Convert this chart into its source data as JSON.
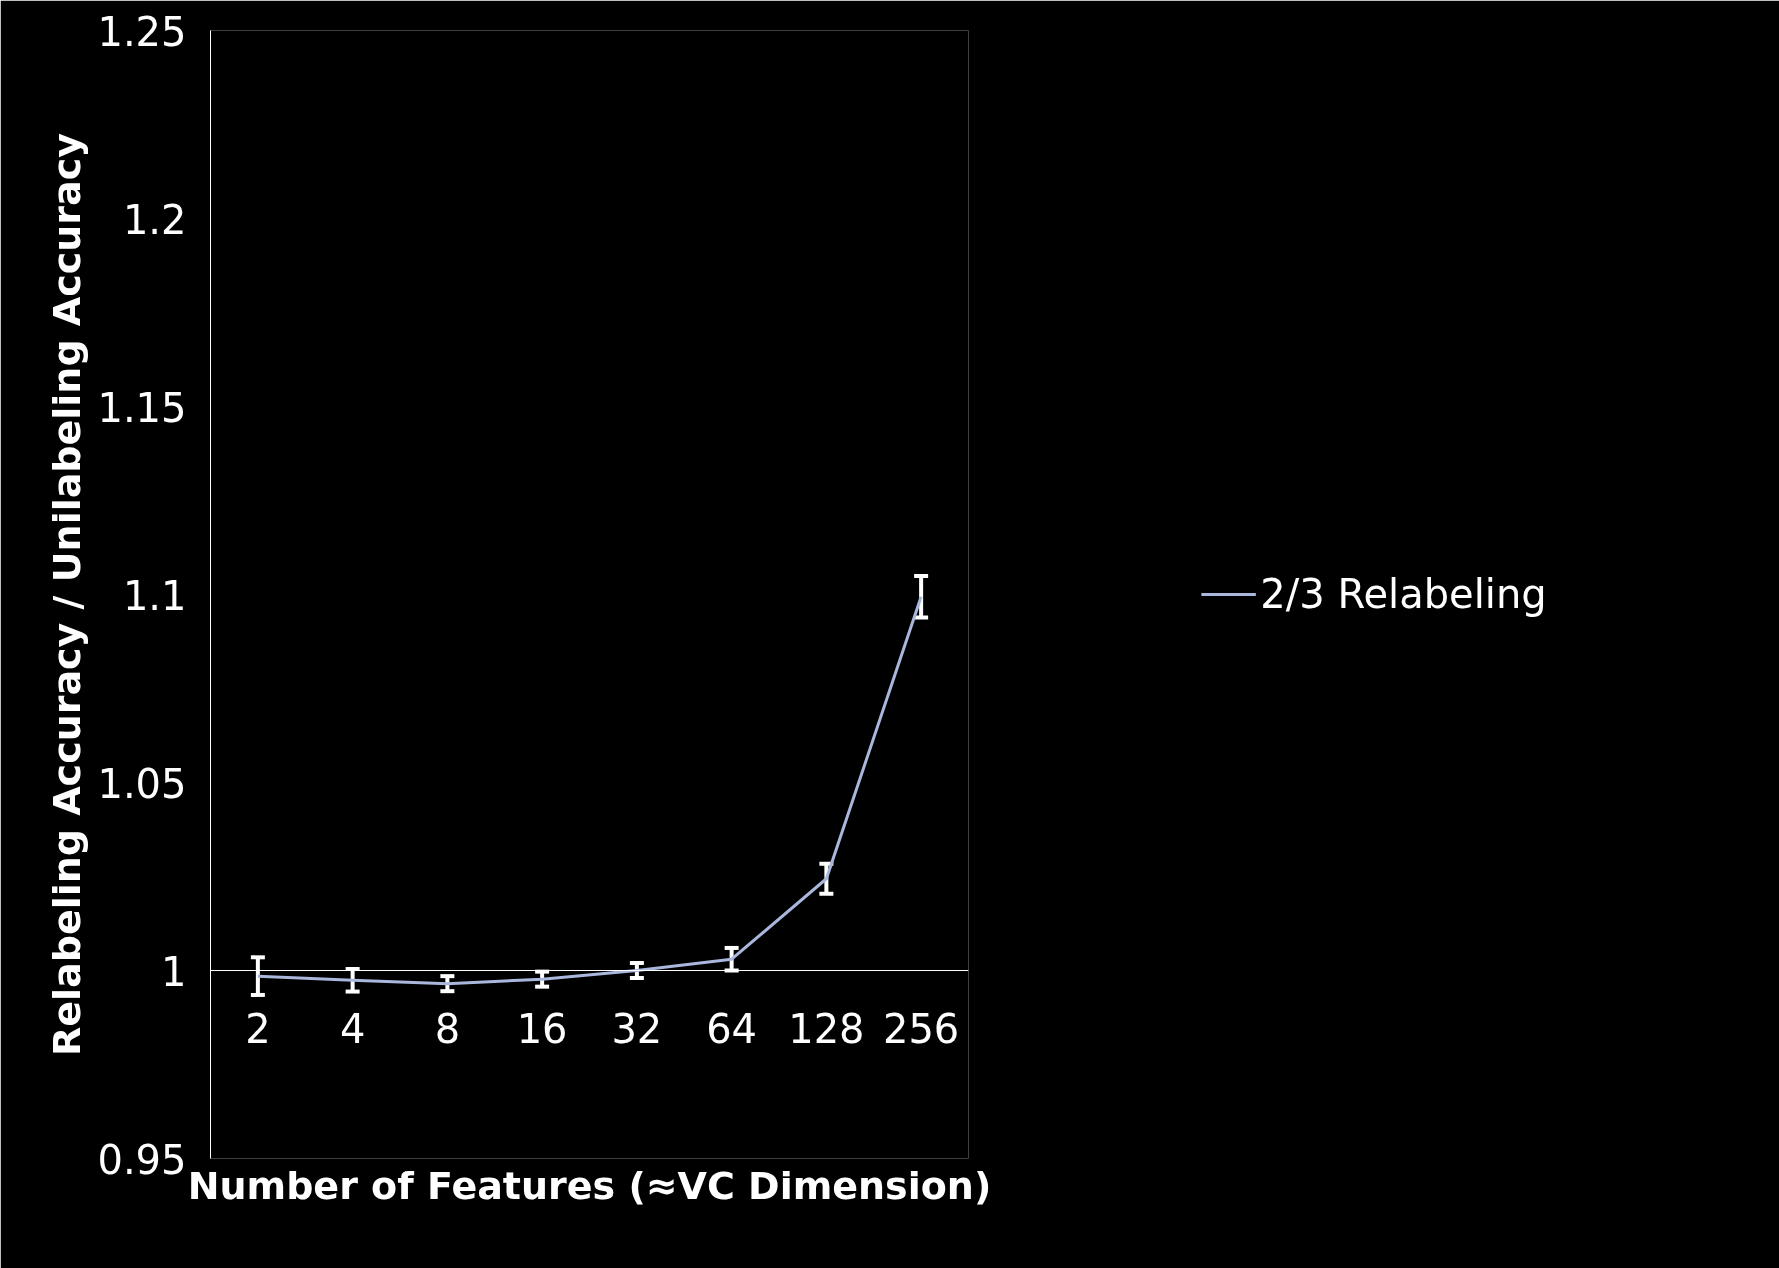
{
  "chart_data": {
    "type": "line",
    "xlabel": "Number of Features (≈VC Dimension)",
    "ylabel": "Relabeling Accuracy / Unilabeling Accuracy",
    "categories": [
      "2",
      "4",
      "8",
      "16",
      "32",
      "64",
      "128",
      "256"
    ],
    "series": [
      {
        "name": "2/3 Relabeling",
        "color": "#a9b7dc",
        "values": [
          0.9985,
          0.9974,
          0.9965,
          0.9977,
          1.0,
          1.003,
          1.0244,
          1.0994
        ],
        "errors": [
          0.005,
          0.003,
          0.002,
          0.002,
          0.002,
          0.003,
          0.004,
          0.0055
        ]
      }
    ],
    "ylim": [
      0.95,
      1.25
    ],
    "yticks": [
      0.95,
      1,
      1.05,
      1.1,
      1.15,
      1.2,
      1.25
    ],
    "grid": false,
    "legend": "right",
    "line_style": "solid"
  }
}
